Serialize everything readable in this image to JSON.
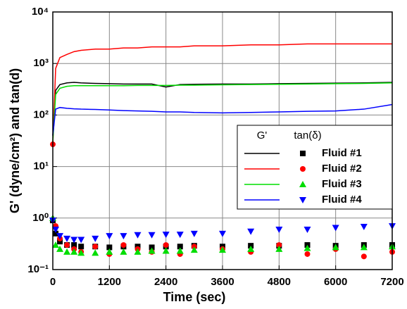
{
  "chart_data": {
    "type": "line",
    "y_label": "G' (dyne/cm²) and tan(d)",
    "x_label": "Time (sec)",
    "log_y": true,
    "grid": true,
    "legend_headers": [
      "G'",
      "tan(δ)"
    ],
    "xlim": [
      0,
      7200
    ],
    "xticks": [
      0,
      1200,
      2400,
      3600,
      4800,
      6000,
      7200
    ],
    "ylim": [
      0.1,
      10000
    ],
    "yticks": [
      {
        "value": 0.1,
        "label": "10⁻¹"
      },
      {
        "value": 1,
        "label": "10⁰"
      },
      {
        "value": 10,
        "label": "10¹"
      },
      {
        "value": 100,
        "label": "10²"
      },
      {
        "value": 1000,
        "label": "10³"
      },
      {
        "value": 10000,
        "label": "10⁴"
      }
    ],
    "x": [
      0,
      60,
      150,
      300,
      450,
      600,
      900,
      1200,
      1500,
      1800,
      2100,
      2400,
      2700,
      3000,
      3600,
      4200,
      4800,
      5400,
      6000,
      6600,
      7200
    ],
    "series": [
      {
        "name": "Fluid #1",
        "color": "#000000",
        "marker": "square",
        "values": [
          40,
          300,
          390,
          420,
          430,
          420,
          410,
          405,
          400,
          400,
          400,
          350,
          390,
          395,
          400,
          400,
          405,
          410,
          415,
          420,
          430
        ],
        "tan_values": [
          0.9,
          0.5,
          0.35,
          0.3,
          0.3,
          0.28,
          0.28,
          0.27,
          0.28,
          0.28,
          0.27,
          0.28,
          0.28,
          0.29,
          0.28,
          0.29,
          0.29,
          0.3,
          0.29,
          0.3,
          0.3
        ]
      },
      {
        "name": "Fluid #2",
        "color": "#ff0000",
        "marker": "circle",
        "values": [
          27,
          800,
          1300,
          1500,
          1700,
          1800,
          1900,
          1900,
          2000,
          2000,
          2100,
          2100,
          2100,
          2200,
          2200,
          2300,
          2300,
          2400,
          2400,
          2400,
          2400
        ],
        "tan_values": [
          27,
          0.7,
          0.4,
          0.3,
          0.25,
          0.22,
          0.28,
          0.2,
          0.3,
          0.25,
          0.22,
          0.3,
          0.2,
          0.28,
          0.25,
          0.22,
          0.3,
          0.2,
          0.25,
          0.18,
          0.22
        ]
      },
      {
        "name": "Fluid #3",
        "color": "#00dd00",
        "marker": "triangle-up",
        "values": [
          30,
          250,
          330,
          360,
          370,
          370,
          370,
          370,
          370,
          375,
          375,
          375,
          380,
          380,
          385,
          390,
          395,
          400,
          405,
          410,
          420
        ],
        "tan_values": [
          1.0,
          0.3,
          0.25,
          0.22,
          0.22,
          0.21,
          0.21,
          0.22,
          0.22,
          0.22,
          0.23,
          0.23,
          0.23,
          0.24,
          0.24,
          0.25,
          0.25,
          0.26,
          0.27,
          0.27,
          0.28
        ]
      },
      {
        "name": "Fluid #4",
        "color": "#0000ff",
        "marker": "triangle-down",
        "values": [
          40,
          130,
          140,
          135,
          132,
          130,
          128,
          125,
          122,
          120,
          118,
          115,
          115,
          112,
          110,
          112,
          115,
          118,
          120,
          130,
          160
        ],
        "tan_values": [
          0.9,
          0.6,
          0.45,
          0.4,
          0.38,
          0.38,
          0.4,
          0.45,
          0.45,
          0.47,
          0.47,
          0.48,
          0.48,
          0.5,
          0.5,
          0.55,
          0.6,
          0.6,
          0.65,
          0.68,
          0.7
        ]
      }
    ]
  }
}
